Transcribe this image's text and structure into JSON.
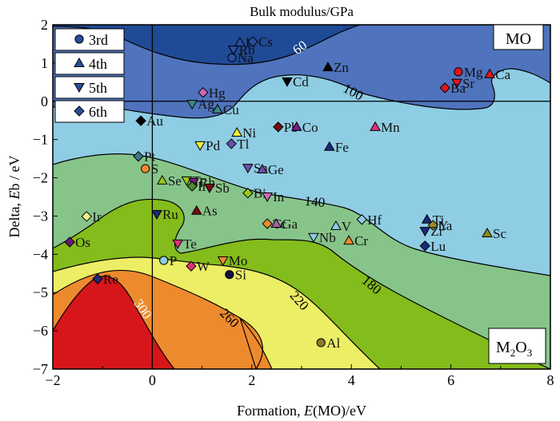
{
  "chart_data": {
    "type": "contour-scatter",
    "title": "Bulk modulus/GPa",
    "xlabel_prefix": "Formation, ",
    "xlabel_italic": "E",
    "xlabel_suffix": "(MO)/eV",
    "ylabel_prefix": "Delta, ",
    "ylabel_italic": "E",
    "ylabel_suffix": "b / eV",
    "xlim": [
      -2,
      8
    ],
    "ylim": [
      -7,
      2
    ],
    "xticks": [
      -2,
      0,
      2,
      4,
      6,
      8
    ],
    "yticks": [
      2,
      1,
      0,
      -1,
      -2,
      -3,
      -4,
      -5,
      -6,
      -7
    ],
    "xtick_labels": [
      "−2",
      "0",
      "2",
      "4",
      "6",
      "8"
    ],
    "ytick_labels": [
      "2",
      "1",
      "0",
      "−1",
      "−2",
      "−3",
      "−4",
      "−5",
      "−6",
      "−7"
    ],
    "reference_lines": {
      "x": 0,
      "y": 0
    },
    "region_labels": {
      "top_right": "MO",
      "bottom_right_main": "M",
      "bottom_right_sub1": "2",
      "bottom_right_mid": "O",
      "bottom_right_sub2": "3"
    },
    "contour_levels": [
      {
        "level": 60,
        "label": "60",
        "color": "#1f4a96"
      },
      {
        "level": 100,
        "label": "100",
        "color": "#4f73bd"
      },
      {
        "level": 140,
        "label": "140",
        "color": "#8ecde3"
      },
      {
        "level": 180,
        "label": "180",
        "color": "#87c48a"
      },
      {
        "level": 220,
        "label": "220",
        "color": "#84bc1c"
      },
      {
        "level": 260,
        "label": "260",
        "color": "#ecee66"
      },
      {
        "level": 300,
        "label": "300",
        "color": "#ee8a2e"
      },
      {
        "level": 340,
        "label": "",
        "color": "#d6161a"
      }
    ],
    "legend": {
      "position": "top-left",
      "entries": [
        {
          "label": "3rd",
          "marker": "circle"
        },
        {
          "label": "4th",
          "marker": "triangle-up"
        },
        {
          "label": "5th",
          "marker": "triangle-down"
        },
        {
          "label": "6th",
          "marker": "diamond"
        }
      ],
      "marker_color": "#2a4f9e"
    },
    "points": [
      {
        "label": "Na",
        "x": 1.6,
        "y": 1.14,
        "marker": "circle",
        "color": "#2a4f9e"
      },
      {
        "label": "K",
        "x": 1.76,
        "y": 1.54,
        "marker": "triangle-up",
        "color": "#2a4f9e"
      },
      {
        "label": "Rb",
        "x": 1.63,
        "y": 1.35,
        "marker": "triangle-down",
        "color": "#2a4f9e"
      },
      {
        "label": "Cs",
        "x": 2.02,
        "y": 1.56,
        "marker": "diamond",
        "color": "#2a4f9e"
      },
      {
        "label": "Zn",
        "x": 3.53,
        "y": 0.89,
        "marker": "triangle-up",
        "color": "#000000"
      },
      {
        "label": "Cd",
        "x": 2.71,
        "y": 0.52,
        "marker": "triangle-down",
        "color": "#000000"
      },
      {
        "label": "Mg",
        "x": 6.15,
        "y": 0.77,
        "marker": "circle",
        "color": "#e0161c"
      },
      {
        "label": "Ca",
        "x": 6.78,
        "y": 0.71,
        "marker": "triangle-up",
        "color": "#e0161c"
      },
      {
        "label": "Sr",
        "x": 6.12,
        "y": 0.48,
        "marker": "triangle-down",
        "color": "#e0161c"
      },
      {
        "label": "Ba",
        "x": 5.88,
        "y": 0.35,
        "marker": "diamond",
        "color": "#e0161c"
      },
      {
        "label": "Hg",
        "x": 1.02,
        "y": 0.23,
        "marker": "diamond",
        "color": "#c86cb6"
      },
      {
        "label": "Ag",
        "x": 0.8,
        "y": -0.07,
        "marker": "triangle-down",
        "color": "#3e8a86"
      },
      {
        "label": "Cu",
        "x": 1.31,
        "y": -0.21,
        "marker": "triangle-up",
        "color": "#3e8a86"
      },
      {
        "label": "Au",
        "x": -0.23,
        "y": -0.51,
        "marker": "diamond",
        "color": "#000000"
      },
      {
        "label": "Ni",
        "x": 1.7,
        "y": -0.82,
        "marker": "triangle-up",
        "color": "#f2ee3a"
      },
      {
        "label": "Pd",
        "x": 0.96,
        "y": -1.15,
        "marker": "triangle-down",
        "color": "#f2ee3a"
      },
      {
        "label": "Tl",
        "x": 1.59,
        "y": -1.11,
        "marker": "diamond",
        "color": "#6a4fa8"
      },
      {
        "label": "Pb",
        "x": 2.53,
        "y": -0.67,
        "marker": "diamond",
        "color": "#7a0a14"
      },
      {
        "label": "Co",
        "x": 2.9,
        "y": -0.67,
        "marker": "triangle-up",
        "color": "#7a1a8a"
      },
      {
        "label": "Mn",
        "x": 4.48,
        "y": -0.67,
        "marker": "triangle-up",
        "color": "#e0307a"
      },
      {
        "label": "Fe",
        "x": 3.56,
        "y": -1.19,
        "marker": "triangle-up",
        "color": "#1a2a7a"
      },
      {
        "label": "Pt",
        "x": -0.28,
        "y": -1.44,
        "marker": "diamond",
        "color": "#3e7a86"
      },
      {
        "label": "S",
        "x": -0.14,
        "y": -1.76,
        "marker": "circle",
        "color": "#f08a2e"
      },
      {
        "label": "Se",
        "x": 0.2,
        "y": -2.07,
        "marker": "triangle-up",
        "color": "#96c81c"
      },
      {
        "label": "Tc",
        "x": 0.69,
        "y": -2.07,
        "marker": "triangle-down",
        "color": "#96c81c"
      },
      {
        "label": "Rh",
        "x": 0.83,
        "y": -2.11,
        "marker": "triangle-down",
        "color": "#7a1a8a"
      },
      {
        "label": "Ir",
        "x": 0.8,
        "y": -2.22,
        "marker": "diamond",
        "color": "#4e8a2a"
      },
      {
        "label": "Sb",
        "x": 1.15,
        "y": -2.26,
        "marker": "triangle-down",
        "color": "#7a0a14"
      },
      {
        "label": "Sn",
        "x": 1.92,
        "y": -1.74,
        "marker": "triangle-down",
        "color": "#6a4fa8"
      },
      {
        "label": "Ge",
        "x": 2.21,
        "y": -1.78,
        "marker": "triangle-up",
        "color": "#6a4fa8"
      },
      {
        "label": "Bi",
        "x": 1.92,
        "y": -2.4,
        "marker": "diamond",
        "color": "#96c81c"
      },
      {
        "label": "In",
        "x": 2.31,
        "y": -2.49,
        "marker": "triangle-down",
        "color": "#c86cb6"
      },
      {
        "label": "Ir",
        "x": -1.32,
        "y": -3.01,
        "marker": "diamond",
        "color": "#f2ee8a"
      },
      {
        "label": "Ru",
        "x": 0.09,
        "y": -2.95,
        "marker": "triangle-down",
        "color": "#1a2a7a"
      },
      {
        "label": "As",
        "x": 0.89,
        "y": -2.86,
        "marker": "triangle-up",
        "color": "#7a0a14"
      },
      {
        "label": "Tc",
        "x": 2.31,
        "y": -3.2,
        "marker": "diamond",
        "color": "#f08a2e"
      },
      {
        "label": "Ga",
        "x": 2.49,
        "y": -3.2,
        "marker": "triangle-up",
        "color": "#a860a8"
      },
      {
        "label": "V",
        "x": 3.69,
        "y": -3.26,
        "marker": "triangle-up",
        "color": "#8ecde3"
      },
      {
        "label": "Hf",
        "x": 4.21,
        "y": -3.09,
        "marker": "diamond",
        "color": "#8ecde3"
      },
      {
        "label": "Nb",
        "x": 3.24,
        "y": -3.55,
        "marker": "triangle-down",
        "color": "#8ecde3"
      },
      {
        "label": "Cr",
        "x": 3.95,
        "y": -3.64,
        "marker": "triangle-up",
        "color": "#f08a2e"
      },
      {
        "label": "Os",
        "x": -1.66,
        "y": -3.68,
        "marker": "diamond",
        "color": "#6a1a7a"
      },
      {
        "label": "Te",
        "x": 0.51,
        "y": -3.72,
        "marker": "triangle-down",
        "color": "#e0307a"
      },
      {
        "label": "Ti",
        "x": 5.52,
        "y": -3.09,
        "marker": "triangle-up",
        "color": "#1a2a7a"
      },
      {
        "label": "Y",
        "x": 5.64,
        "y": -3.24,
        "marker": "diamond",
        "color": "#9a8a2a"
      },
      {
        "label": "La",
        "x": 5.74,
        "y": -3.24,
        "marker": "none",
        "color": "#9a8a2a"
      },
      {
        "label": "Zr",
        "x": 5.48,
        "y": -3.39,
        "marker": "triangle-down",
        "color": "#1a2a7a"
      },
      {
        "label": "Lu",
        "x": 5.48,
        "y": -3.78,
        "marker": "diamond",
        "color": "#1a2a7a"
      },
      {
        "label": "Sc",
        "x": 6.73,
        "y": -3.45,
        "marker": "triangle-up",
        "color": "#8a8a1a"
      },
      {
        "label": "P",
        "x": 0.23,
        "y": -4.16,
        "marker": "circle",
        "color": "#8ecde3"
      },
      {
        "label": "W",
        "x": 0.78,
        "y": -4.31,
        "marker": "diamond",
        "color": "#e0307a"
      },
      {
        "label": "Mo",
        "x": 1.42,
        "y": -4.16,
        "marker": "triangle-down",
        "color": "#f08a2e"
      },
      {
        "label": "Si",
        "x": 1.55,
        "y": -4.53,
        "marker": "circle",
        "color": "#101040"
      },
      {
        "label": "Re",
        "x": -1.1,
        "y": -4.64,
        "marker": "diamond",
        "color": "#1a2a7a"
      },
      {
        "label": "Al",
        "x": 3.39,
        "y": -6.31,
        "marker": "circle",
        "color": "#8a7a2a"
      }
    ]
  }
}
